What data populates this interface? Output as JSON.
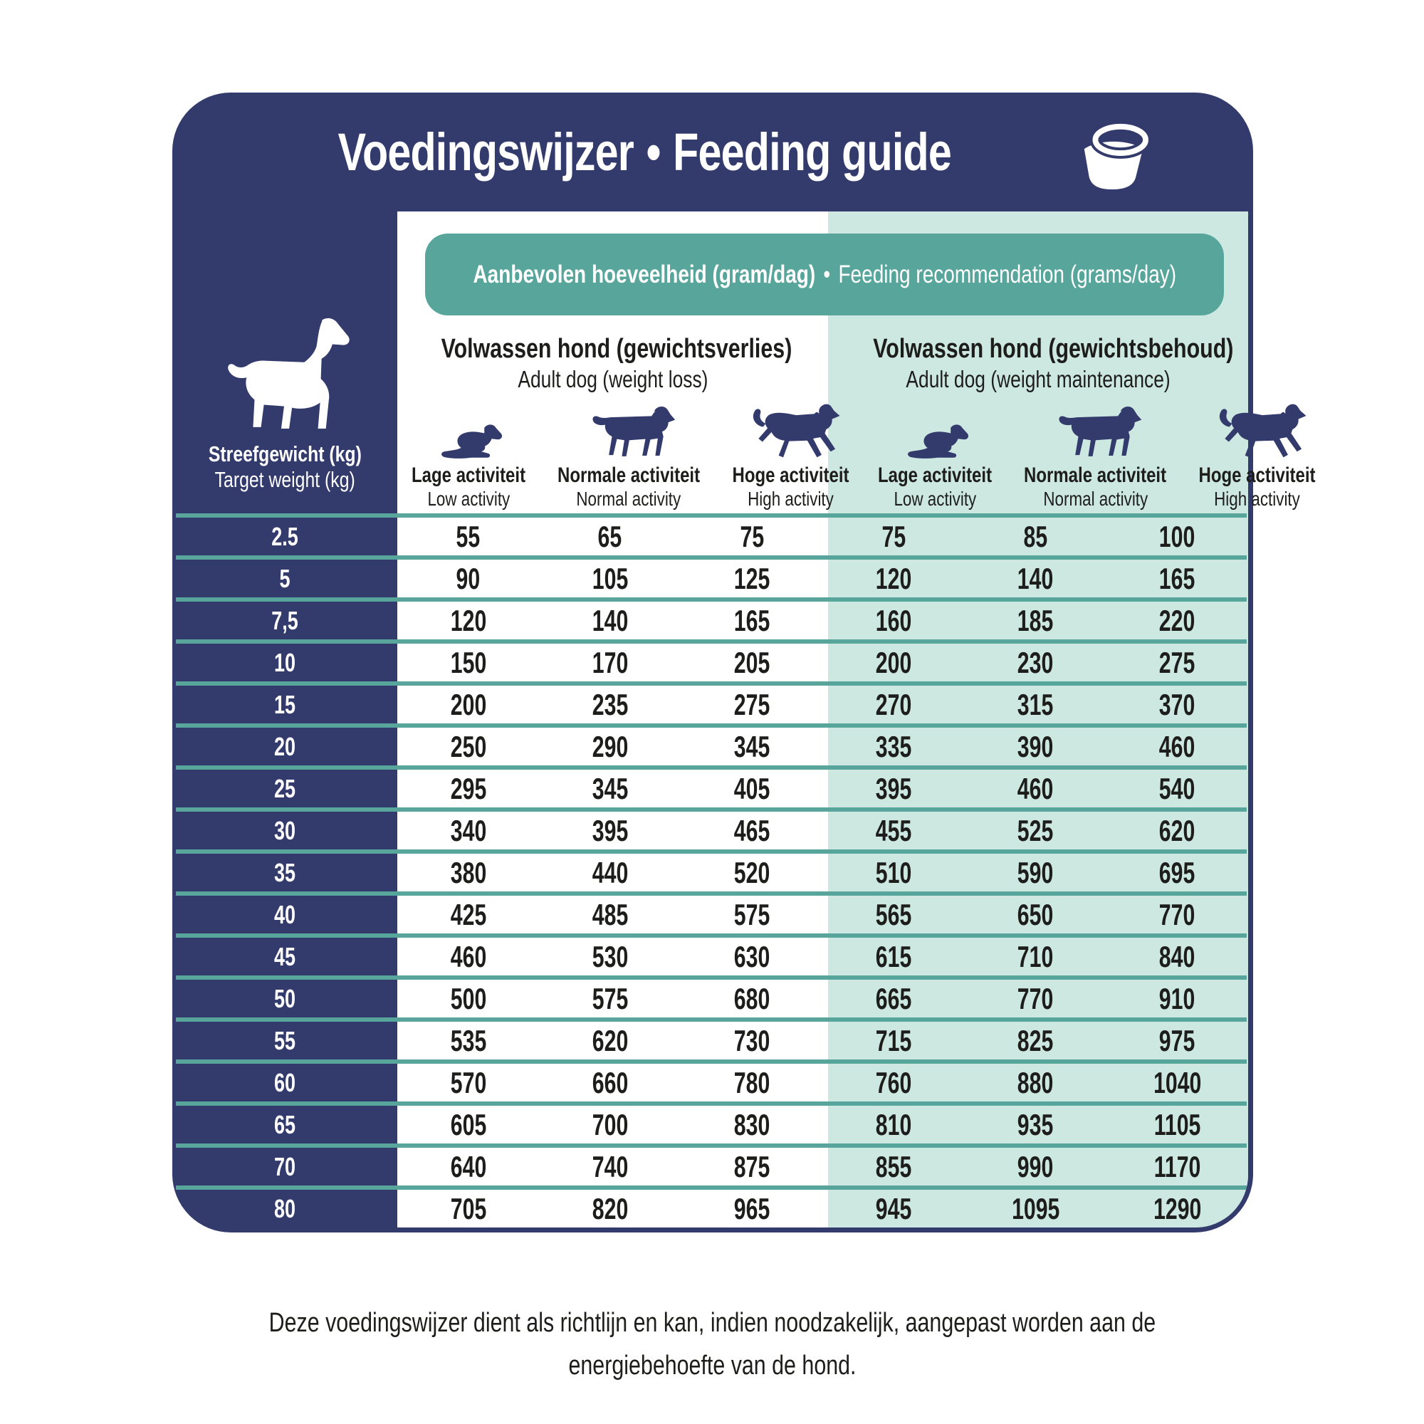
{
  "title": {
    "nl": "Voedingswijzer",
    "bullet": "•",
    "en": "Feeding guide"
  },
  "band": {
    "nl": "Aanbevolen hoeveelheid (gram/dag)",
    "bullet": "•",
    "en": "Feeding recommendation (grams/day)"
  },
  "weight_column": {
    "nl": "Streefgewicht (kg)",
    "en": "Target weight (kg)"
  },
  "sections": [
    {
      "nl": "Volwassen hond (gewichtsverlies)",
      "en": "Adult dog (weight loss)"
    },
    {
      "nl": "Volwassen hond (gewichtsbehoud)",
      "en": "Adult dog (weight maintenance)"
    }
  ],
  "activity_levels": [
    {
      "nl": "Lage activiteit",
      "en": "Low activity",
      "icon": "lying-dog-icon"
    },
    {
      "nl": "Normale activiteit",
      "en": "Normal activity",
      "icon": "walking-dog-icon"
    },
    {
      "nl": "Hoge activiteit",
      "en": "High activity",
      "icon": "running-dog-icon"
    }
  ],
  "colors": {
    "navy": "#333a6c",
    "teal": "#57a59b",
    "mint": "#cde7e1",
    "text_dark": "#1d1d1b",
    "white": "#ffffff"
  },
  "footer": {
    "line1": "Deze voedingswijzer dient als richtlijn en kan, indien noodzakelijk, aangepast worden aan de",
    "line2": "energiebehoefte van de hond."
  },
  "chart_data": {
    "type": "table",
    "title": "Voedingswijzer • Feeding guide",
    "columns": [
      "Streefgewicht (kg)",
      "Gewichtsverlies - Lage activiteit",
      "Gewichtsverlies - Normale activiteit",
      "Gewichtsverlies - Hoge activiteit",
      "Gewichtsbehoud - Lage activiteit",
      "Gewichtsbehoud - Normale activiteit",
      "Gewichtsbehoud - Hoge activiteit"
    ],
    "unit": "gram/dag"
  },
  "table": {
    "rows": [
      {
        "weight": "2.5",
        "loss": [
          "55",
          "65",
          "75"
        ],
        "maintenance": [
          "75",
          "85",
          "100"
        ]
      },
      {
        "weight": "5",
        "loss": [
          "90",
          "105",
          "125"
        ],
        "maintenance": [
          "120",
          "140",
          "165"
        ]
      },
      {
        "weight": "7,5",
        "loss": [
          "120",
          "140",
          "165"
        ],
        "maintenance": [
          "160",
          "185",
          "220"
        ]
      },
      {
        "weight": "10",
        "loss": [
          "150",
          "170",
          "205"
        ],
        "maintenance": [
          "200",
          "230",
          "275"
        ]
      },
      {
        "weight": "15",
        "loss": [
          "200",
          "235",
          "275"
        ],
        "maintenance": [
          "270",
          "315",
          "370"
        ]
      },
      {
        "weight": "20",
        "loss": [
          "250",
          "290",
          "345"
        ],
        "maintenance": [
          "335",
          "390",
          "460"
        ]
      },
      {
        "weight": "25",
        "loss": [
          "295",
          "345",
          "405"
        ],
        "maintenance": [
          "395",
          "460",
          "540"
        ]
      },
      {
        "weight": "30",
        "loss": [
          "340",
          "395",
          "465"
        ],
        "maintenance": [
          "455",
          "525",
          "620"
        ]
      },
      {
        "weight": "35",
        "loss": [
          "380",
          "440",
          "520"
        ],
        "maintenance": [
          "510",
          "590",
          "695"
        ]
      },
      {
        "weight": "40",
        "loss": [
          "425",
          "485",
          "575"
        ],
        "maintenance": [
          "565",
          "650",
          "770"
        ]
      },
      {
        "weight": "45",
        "loss": [
          "460",
          "530",
          "630"
        ],
        "maintenance": [
          "615",
          "710",
          "840"
        ]
      },
      {
        "weight": "50",
        "loss": [
          "500",
          "575",
          "680"
        ],
        "maintenance": [
          "665",
          "770",
          "910"
        ]
      },
      {
        "weight": "55",
        "loss": [
          "535",
          "620",
          "730"
        ],
        "maintenance": [
          "715",
          "825",
          "975"
        ]
      },
      {
        "weight": "60",
        "loss": [
          "570",
          "660",
          "780"
        ],
        "maintenance": [
          "760",
          "880",
          "1040"
        ]
      },
      {
        "weight": "65",
        "loss": [
          "605",
          "700",
          "830"
        ],
        "maintenance": [
          "810",
          "935",
          "1105"
        ]
      },
      {
        "weight": "70",
        "loss": [
          "640",
          "740",
          "875"
        ],
        "maintenance": [
          "855",
          "990",
          "1170"
        ]
      },
      {
        "weight": "80",
        "loss": [
          "705",
          "820",
          "965"
        ],
        "maintenance": [
          "945",
          "1095",
          "1290"
        ]
      }
    ]
  }
}
